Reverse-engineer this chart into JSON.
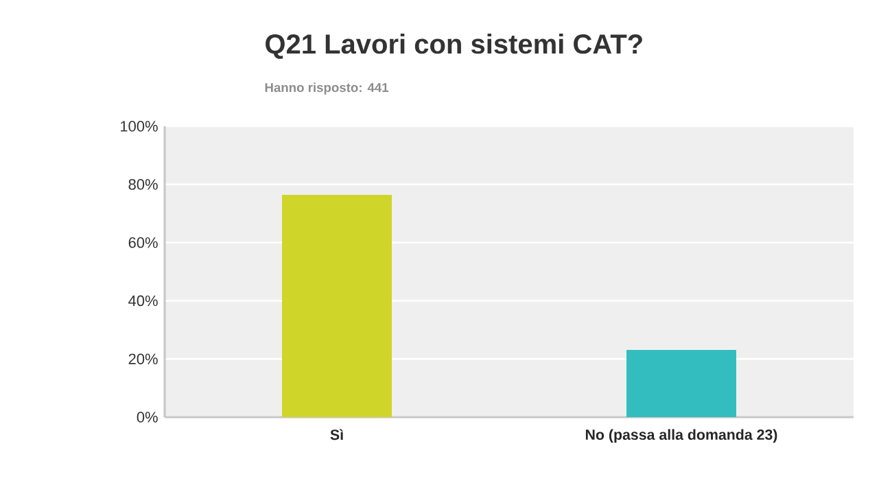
{
  "chart_data": {
    "type": "bar",
    "title": "Q21 Lavori con sistemi CAT?",
    "subtitle": "Hanno risposto: 441",
    "categories": [
      "Sì",
      "No (passa alla domanda 23)"
    ],
    "values": [
      76.4,
      23.1
    ],
    "colors": [
      "#d0d52a",
      "#33bdbf"
    ],
    "ylim": [
      0,
      100
    ],
    "yticks": [
      {
        "value": 0,
        "label": "0%"
      },
      {
        "value": 20,
        "label": "20%"
      },
      {
        "value": 40,
        "label": "40%"
      },
      {
        "value": 60,
        "label": "60%"
      },
      {
        "value": 80,
        "label": "80%"
      },
      {
        "value": 100,
        "label": "100%"
      }
    ],
    "grid": "y"
  }
}
